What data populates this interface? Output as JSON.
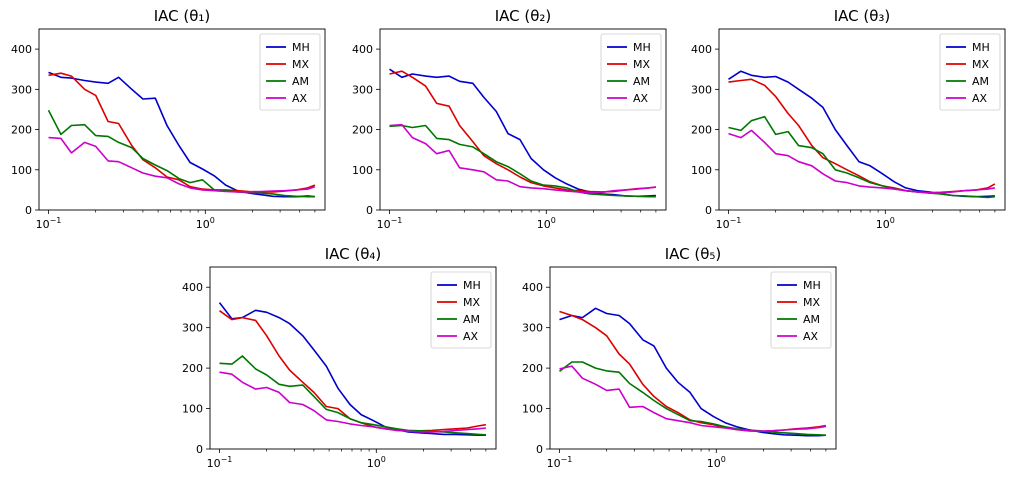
{
  "colors": {
    "MH": "#0000cc",
    "MX": "#dd0000",
    "AM": "#007700",
    "AX": "#cc00cc"
  },
  "chart_data": [
    {
      "type": "line",
      "title": "IAC (θ₁)",
      "x_scale": "log",
      "xlim": [
        0.087,
        5.8
      ],
      "ylim": [
        0,
        450
      ],
      "yticks": [
        0,
        100,
        200,
        300,
        400
      ],
      "xticks": [
        {
          "value": 0.1,
          "base": "10",
          "exp": "−1"
        },
        {
          "value": 1,
          "base": "10",
          "exp": "0"
        }
      ],
      "legend": "top-right",
      "x": [
        0.1,
        0.12,
        0.14,
        0.17,
        0.2,
        0.24,
        0.28,
        0.34,
        0.4,
        0.48,
        0.57,
        0.68,
        0.8,
        0.96,
        1.14,
        1.35,
        1.6,
        1.9,
        2.27,
        2.7,
        3.2,
        3.8,
        4.5,
        5.0
      ],
      "series": [
        {
          "name": "MH",
          "values": [
            342,
            330,
            328,
            322,
            318,
            315,
            330,
            300,
            276,
            278,
            210,
            160,
            118,
            102,
            85,
            62,
            48,
            42,
            38,
            34,
            33,
            33,
            35,
            33
          ]
        },
        {
          "name": "MX",
          "values": [
            335,
            340,
            333,
            300,
            285,
            220,
            215,
            160,
            125,
            105,
            82,
            75,
            58,
            52,
            50,
            50,
            48,
            46,
            45,
            45,
            47,
            50,
            55,
            62
          ]
        },
        {
          "name": "AM",
          "values": [
            248,
            188,
            210,
            212,
            185,
            183,
            168,
            155,
            128,
            112,
            98,
            78,
            68,
            75,
            50,
            48,
            45,
            43,
            42,
            40,
            36,
            34,
            33,
            33
          ]
        },
        {
          "name": "AX",
          "values": [
            180,
            178,
            142,
            168,
            158,
            122,
            120,
            105,
            92,
            84,
            80,
            65,
            55,
            50,
            48,
            46,
            45,
            45,
            46,
            47,
            48,
            50,
            52,
            58
          ]
        }
      ]
    },
    {
      "type": "line",
      "title": "IAC (θ₂)",
      "x_scale": "log",
      "xlim": [
        0.087,
        5.8
      ],
      "ylim": [
        0,
        450
      ],
      "yticks": [
        0,
        100,
        200,
        300,
        400
      ],
      "xticks": [
        {
          "value": 0.1,
          "base": "10",
          "exp": "−1"
        },
        {
          "value": 1,
          "base": "10",
          "exp": "0"
        }
      ],
      "legend": "top-right",
      "x": [
        0.1,
        0.12,
        0.14,
        0.17,
        0.2,
        0.24,
        0.28,
        0.34,
        0.4,
        0.48,
        0.57,
        0.68,
        0.8,
        0.96,
        1.14,
        1.35,
        1.6,
        1.9,
        2.27,
        2.7,
        3.2,
        3.8,
        4.5,
        5.0
      ],
      "series": [
        {
          "name": "MH",
          "values": [
            350,
            330,
            338,
            333,
            330,
            333,
            320,
            315,
            280,
            245,
            190,
            175,
            128,
            100,
            80,
            65,
            52,
            45,
            40,
            38,
            35,
            34,
            35,
            36
          ]
        },
        {
          "name": "MX",
          "values": [
            338,
            345,
            330,
            308,
            265,
            258,
            210,
            170,
            135,
            115,
            100,
            82,
            68,
            60,
            55,
            50,
            48,
            46,
            45,
            46,
            50,
            53,
            55,
            57
          ]
        },
        {
          "name": "AM",
          "values": [
            208,
            210,
            205,
            210,
            178,
            175,
            163,
            157,
            140,
            120,
            108,
            90,
            72,
            62,
            60,
            55,
            45,
            40,
            38,
            36,
            35,
            34,
            33,
            33
          ]
        },
        {
          "name": "AX",
          "values": [
            210,
            212,
            180,
            165,
            140,
            148,
            105,
            100,
            95,
            75,
            72,
            58,
            55,
            53,
            50,
            47,
            45,
            43,
            44,
            48,
            50,
            52,
            55,
            57
          ]
        }
      ]
    },
    {
      "type": "line",
      "title": "IAC (θ₃)",
      "x_scale": "log",
      "xlim": [
        0.087,
        5.8
      ],
      "ylim": [
        0,
        450
      ],
      "yticks": [
        0,
        100,
        200,
        300,
        400
      ],
      "xticks": [
        {
          "value": 0.1,
          "base": "10",
          "exp": "−1"
        },
        {
          "value": 1,
          "base": "10",
          "exp": "0"
        }
      ],
      "legend": "top-right",
      "x": [
        0.1,
        0.12,
        0.14,
        0.17,
        0.2,
        0.24,
        0.28,
        0.34,
        0.4,
        0.48,
        0.57,
        0.68,
        0.8,
        0.96,
        1.14,
        1.35,
        1.6,
        1.9,
        2.27,
        2.7,
        3.2,
        3.8,
        4.5,
        5.0
      ],
      "series": [
        {
          "name": "MH",
          "values": [
            325,
            345,
            335,
            330,
            332,
            318,
            300,
            278,
            255,
            200,
            160,
            120,
            110,
            90,
            70,
            55,
            48,
            45,
            40,
            36,
            34,
            33,
            34,
            35
          ]
        },
        {
          "name": "MX",
          "values": [
            318,
            322,
            325,
            310,
            282,
            240,
            210,
            160,
            130,
            115,
            100,
            85,
            70,
            60,
            55,
            48,
            45,
            43,
            44,
            46,
            48,
            50,
            55,
            65
          ]
        },
        {
          "name": "AM",
          "values": [
            205,
            198,
            222,
            232,
            188,
            195,
            160,
            155,
            140,
            100,
            92,
            80,
            68,
            60,
            53,
            48,
            45,
            42,
            40,
            36,
            35,
            33,
            31,
            33
          ]
        },
        {
          "name": "AX",
          "values": [
            190,
            180,
            198,
            168,
            140,
            135,
            120,
            110,
            90,
            72,
            68,
            60,
            57,
            55,
            52,
            48,
            45,
            43,
            42,
            45,
            48,
            50,
            52,
            55
          ]
        }
      ]
    },
    {
      "type": "line",
      "title": "IAC (θ₄)",
      "x_scale": "log",
      "xlim": [
        0.087,
        5.8
      ],
      "ylim": [
        0,
        450
      ],
      "yticks": [
        0,
        100,
        200,
        300,
        400
      ],
      "xticks": [
        {
          "value": 0.1,
          "base": "10",
          "exp": "−1"
        },
        {
          "value": 1,
          "base": "10",
          "exp": "0"
        }
      ],
      "legend": "top-right",
      "x": [
        0.1,
        0.12,
        0.14,
        0.17,
        0.2,
        0.24,
        0.28,
        0.34,
        0.4,
        0.48,
        0.57,
        0.68,
        0.8,
        0.96,
        1.14,
        1.35,
        1.6,
        1.9,
        2.27,
        2.7,
        3.2,
        3.8,
        4.5,
        5.0
      ],
      "series": [
        {
          "name": "MH",
          "values": [
            362,
            322,
            325,
            343,
            338,
            325,
            310,
            280,
            245,
            205,
            150,
            110,
            85,
            70,
            55,
            48,
            42,
            40,
            38,
            36,
            36,
            35,
            34,
            34
          ]
        },
        {
          "name": "MX",
          "values": [
            342,
            320,
            325,
            318,
            280,
            230,
            195,
            165,
            140,
            105,
            100,
            75,
            65,
            55,
            50,
            47,
            45,
            45,
            46,
            48,
            50,
            52,
            57,
            60
          ]
        },
        {
          "name": "AM",
          "values": [
            212,
            210,
            230,
            198,
            183,
            160,
            155,
            158,
            130,
            98,
            90,
            75,
            65,
            60,
            55,
            50,
            46,
            45,
            43,
            42,
            40,
            38,
            36,
            35
          ]
        },
        {
          "name": "AX",
          "values": [
            190,
            185,
            165,
            148,
            152,
            140,
            115,
            110,
            95,
            72,
            68,
            62,
            58,
            55,
            50,
            46,
            44,
            42,
            42,
            43,
            46,
            48,
            50,
            52
          ]
        }
      ]
    },
    {
      "type": "line",
      "title": "IAC (θ₅)",
      "x_scale": "log",
      "xlim": [
        0.087,
        5.8
      ],
      "ylim": [
        0,
        450
      ],
      "yticks": [
        0,
        100,
        200,
        300,
        400
      ],
      "xticks": [
        {
          "value": 0.1,
          "base": "10",
          "exp": "−1"
        },
        {
          "value": 1,
          "base": "10",
          "exp": "0"
        }
      ],
      "legend": "top-right",
      "x": [
        0.1,
        0.12,
        0.14,
        0.17,
        0.2,
        0.24,
        0.28,
        0.34,
        0.4,
        0.48,
        0.57,
        0.68,
        0.8,
        0.96,
        1.14,
        1.35,
        1.6,
        1.9,
        2.27,
        2.7,
        3.2,
        3.8,
        4.5,
        5.0
      ],
      "series": [
        {
          "name": "MH",
          "values": [
            320,
            330,
            325,
            348,
            335,
            330,
            310,
            270,
            255,
            200,
            165,
            140,
            100,
            80,
            65,
            55,
            48,
            42,
            38,
            35,
            34,
            33,
            33,
            34
          ]
        },
        {
          "name": "MX",
          "values": [
            340,
            330,
            320,
            300,
            280,
            235,
            210,
            160,
            130,
            105,
            90,
            72,
            65,
            60,
            53,
            48,
            45,
            44,
            45,
            47,
            50,
            52,
            55,
            58
          ]
        },
        {
          "name": "AM",
          "values": [
            192,
            215,
            215,
            200,
            193,
            190,
            162,
            140,
            120,
            100,
            85,
            70,
            68,
            62,
            55,
            50,
            47,
            45,
            42,
            40,
            38,
            36,
            35,
            34
          ]
        },
        {
          "name": "AX",
          "values": [
            198,
            205,
            175,
            160,
            145,
            148,
            103,
            105,
            90,
            75,
            70,
            65,
            58,
            55,
            52,
            48,
            45,
            44,
            45,
            47,
            49,
            50,
            53,
            56
          ]
        }
      ]
    }
  ]
}
